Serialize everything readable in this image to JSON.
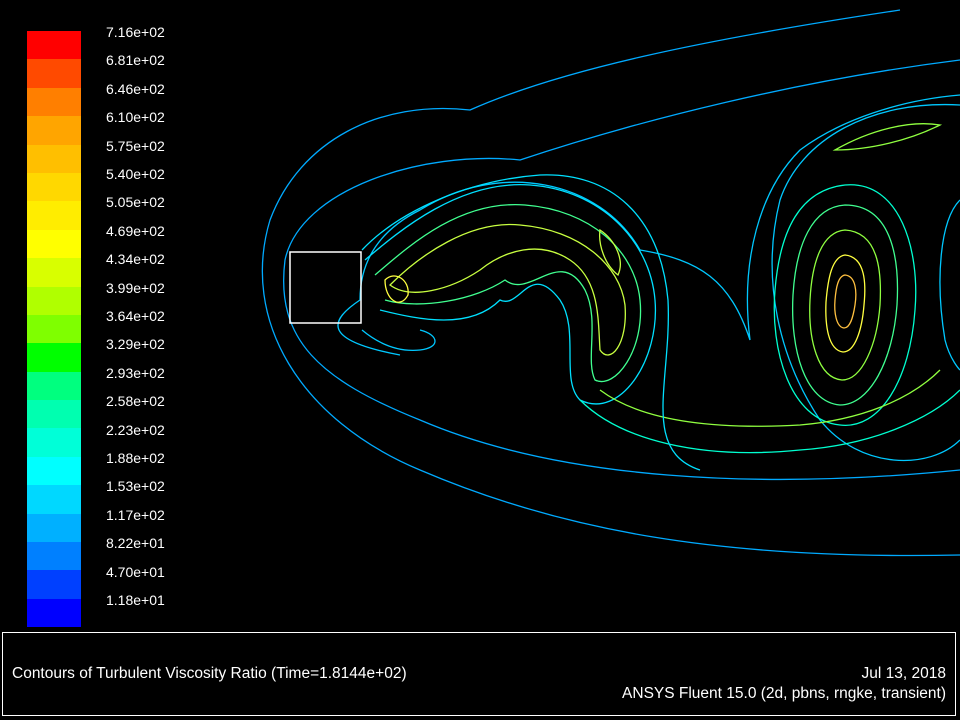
{
  "colorbar": {
    "tick_labels": [
      "7.16e+02",
      "6.81e+02",
      "6.46e+02",
      "6.10e+02",
      "5.75e+02",
      "5.40e+02",
      "5.05e+02",
      "4.69e+02",
      "4.34e+02",
      "3.99e+02",
      "3.64e+02",
      "3.29e+02",
      "2.93e+02",
      "2.58e+02",
      "2.23e+02",
      "1.88e+02",
      "1.53e+02",
      "1.17e+02",
      "8.22e+01",
      "4.70e+01",
      "1.18e+01"
    ],
    "colors": [
      "#ff0000",
      "#ff4a00",
      "#ff7f00",
      "#ffa500",
      "#ffbf00",
      "#ffd800",
      "#ffed00",
      "#ffff00",
      "#d8ff00",
      "#b0ff00",
      "#7fff00",
      "#00ff00",
      "#00ff7f",
      "#00ffb0",
      "#00ffd8",
      "#00ffff",
      "#00d8ff",
      "#00b0ff",
      "#0080ff",
      "#0040ff",
      "#0000ff"
    ]
  },
  "plot": {
    "contour_colors": [
      "#00aaff",
      "#00c8ff",
      "#00e0ff",
      "#00ffd0",
      "#40ff90",
      "#90ff40",
      "#c8ff40",
      "#ffff40",
      "#ffc040"
    ]
  },
  "info": {
    "title": "Contours of Turbulent Viscosity Ratio  (Time=1.8144e+02)",
    "date": "Jul 13, 2018",
    "software": "ANSYS Fluent 15.0 (2d, pbns, rngke, transient)"
  }
}
